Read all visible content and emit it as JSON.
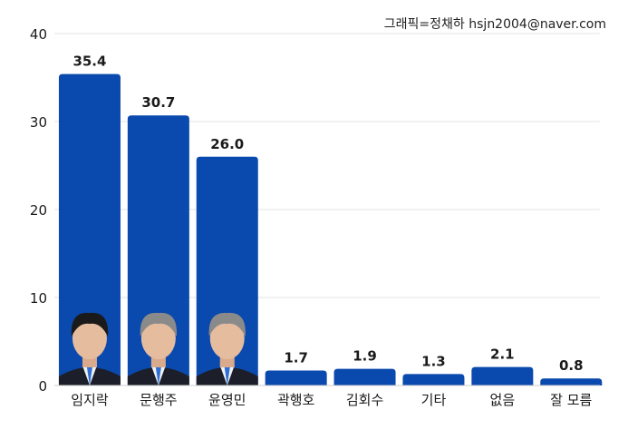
{
  "credit": "그래픽=정채하 hsjn2004@naver.com",
  "colors": {
    "bar": "#0a49ad",
    "grid": "#e3e3e3",
    "text": "#1a1a1a"
  },
  "chart_data": {
    "type": "bar",
    "categories": [
      "임지락",
      "문행주",
      "윤영민",
      "곽행호",
      "김회수",
      "기타",
      "없음",
      "잘 모름"
    ],
    "values": [
      35.4,
      30.7,
      26.0,
      1.7,
      1.9,
      1.3,
      2.1,
      0.8
    ],
    "data_labels": [
      "35.4",
      "30.7",
      "26.0",
      "1.7",
      "1.9",
      "1.3",
      "2.1",
      "0.8"
    ],
    "ylim": [
      0,
      40
    ],
    "yticks": [
      0,
      10,
      20,
      30,
      40
    ],
    "grid": true,
    "portrait_categories": [
      "임지락",
      "문행주",
      "윤영민"
    ]
  }
}
